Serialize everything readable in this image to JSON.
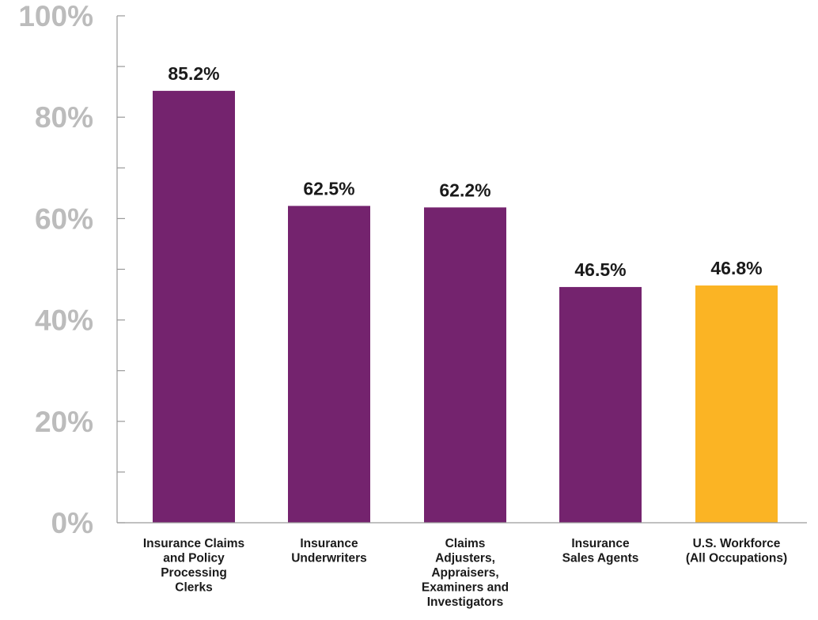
{
  "chart_data": {
    "type": "bar",
    "title": "",
    "xlabel": "",
    "ylabel": "",
    "ylim": [
      0,
      100
    ],
    "y_ticks": [
      "0%",
      "20%",
      "40%",
      "60%",
      "80%",
      "100%"
    ],
    "y_tick_values": [
      0,
      20,
      40,
      60,
      80,
      100
    ],
    "y_minor_ticks": [
      10,
      30,
      50,
      70,
      90
    ],
    "grid": false,
    "categories": [
      "Insurance Claims and Policy Processing Clerks",
      "Insurance Underwriters",
      "Claims Adjusters, Appraisers, Examiners and Investigators",
      "Insurance Sales Agents",
      "U.S. Workforce (All Occupations)"
    ],
    "category_lines": [
      [
        "Insurance Claims",
        "and Policy",
        "Processing",
        "Clerks"
      ],
      [
        "Insurance",
        "Underwriters"
      ],
      [
        "Claims",
        "Adjusters,",
        "Appraisers,",
        "Examiners and",
        "Investigators"
      ],
      [
        "Insurance",
        "Sales Agents"
      ],
      [
        "U.S. Workforce",
        "(All Occupations)"
      ]
    ],
    "values": [
      85.2,
      62.5,
      62.2,
      46.5,
      46.8
    ],
    "value_labels": [
      "85.2%",
      "62.5%",
      "62.2%",
      "46.5%",
      "46.8%"
    ],
    "colors": [
      "#74236e",
      "#74236e",
      "#74236e",
      "#74236e",
      "#fbb424"
    ]
  }
}
